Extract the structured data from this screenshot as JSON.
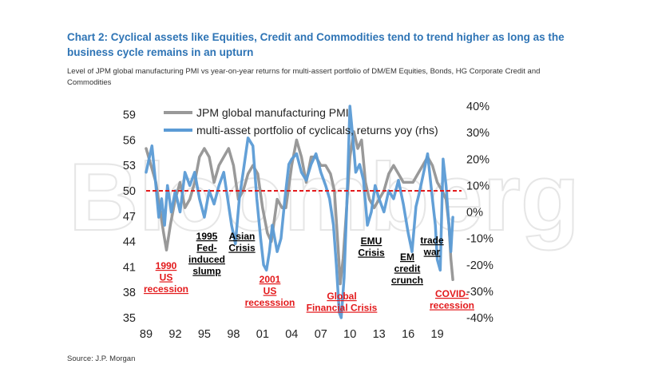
{
  "header": {
    "title": "Chart 2: Cyclical assets like Equities, Credit and Commodities tend to trend higher as long as the business cycle remains in an upturn",
    "subtitle": "Level of JPM global manufacturing PMI vs year-on-year returns for multi-assert portfolio of DM/EM Equities, Bonds, HG Corporate Credit and Commodities"
  },
  "footer": {
    "source": "Source: J.P. Morgan"
  },
  "watermark": "Bloomberg",
  "colors": {
    "pmi": "#999999",
    "portfolio": "#5b9bd5",
    "threshold": "#e31a1c",
    "black_label": "#000000",
    "red_label": "#e31a1c"
  },
  "chart_data": {
    "type": "line",
    "title": "",
    "x_ticks": [
      "89",
      "92",
      "95",
      "98",
      "01",
      "04",
      "07",
      "10",
      "13",
      "16",
      "19"
    ],
    "y_left": {
      "ticks": [
        35,
        38,
        41,
        44,
        47,
        50,
        53,
        56,
        59
      ],
      "labels": [
        "35",
        "38",
        "41",
        "44",
        "47",
        "50",
        "53",
        "56",
        "59"
      ],
      "range": [
        35,
        60
      ]
    },
    "y_right": {
      "ticks": [
        -40,
        -30,
        -20,
        -10,
        0,
        10,
        20,
        30,
        40
      ],
      "labels": [
        "-40%",
        "-30%",
        "-20%",
        "-10%",
        "0%",
        "10%",
        "20%",
        "30%",
        "40%"
      ],
      "range": [
        -40,
        40
      ]
    },
    "x_range": [
      1989,
      2021.5
    ],
    "threshold": {
      "axis": "left",
      "value": 50
    },
    "series": [
      {
        "name": "JPM global manufacturing PMI",
        "axis": "left",
        "x": [
          1989.0,
          1989.5,
          1990.0,
          1990.4,
          1990.8,
          1991.1,
          1991.5,
          1992.0,
          1992.5,
          1993.0,
          1993.5,
          1994.0,
          1994.5,
          1995.0,
          1995.5,
          1996.0,
          1996.5,
          1997.0,
          1997.5,
          1998.0,
          1998.5,
          1999.0,
          1999.5,
          2000.0,
          2000.5,
          2001.0,
          2001.5,
          2001.9,
          2002.5,
          2003.0,
          2003.4,
          2004.0,
          2004.5,
          2005.0,
          2005.5,
          2006.0,
          2006.5,
          2007.0,
          2007.5,
          2008.0,
          2008.4,
          2008.8,
          2009.0,
          2009.3,
          2009.6,
          2010.0,
          2010.4,
          2010.8,
          2011.2,
          2011.6,
          2012.0,
          2012.5,
          2013.0,
          2013.5,
          2014.0,
          2014.5,
          2015.0,
          2015.5,
          2016.0,
          2016.5,
          2017.0,
          2017.5,
          2018.0,
          2018.5,
          2019.0,
          2019.5,
          2019.9,
          2020.2,
          2020.4,
          2020.6
        ],
        "values": [
          55,
          53,
          51,
          48,
          45,
          43,
          46,
          49,
          51,
          48,
          49,
          51,
          54,
          55,
          54,
          51,
          53,
          54,
          55,
          53,
          49,
          50,
          52,
          53,
          52,
          48,
          45,
          44,
          49,
          48,
          48,
          53,
          56,
          54,
          51,
          54,
          54,
          53,
          53,
          52,
          50,
          43,
          39,
          42,
          47,
          54,
          57,
          55,
          56,
          51,
          49,
          48,
          49,
          50,
          52,
          53,
          52,
          51,
          51,
          51,
          52,
          53,
          54,
          53,
          51,
          50,
          49,
          46,
          42,
          39.5
        ]
      },
      {
        "name": "multi-asset portfolio of cyclicals, returns yoy (rhs)",
        "axis": "right",
        "x": [
          1989.0,
          1989.3,
          1989.6,
          1990.0,
          1990.3,
          1990.6,
          1990.9,
          1991.2,
          1991.6,
          1992.0,
          1992.5,
          1993.0,
          1993.5,
          1994.0,
          1994.5,
          1995.0,
          1995.5,
          1996.0,
          1996.5,
          1997.0,
          1997.4,
          1997.8,
          1998.2,
          1998.6,
          1999.0,
          1999.5,
          2000.0,
          2000.4,
          2000.8,
          2001.1,
          2001.4,
          2001.7,
          2002.0,
          2002.5,
          2002.9,
          2003.3,
          2003.7,
          2004.0,
          2004.5,
          2005.0,
          2005.5,
          2006.0,
          2006.5,
          2007.0,
          2007.5,
          2007.9,
          2008.3,
          2008.6,
          2008.9,
          2009.1,
          2009.4,
          2009.7,
          2010.0,
          2010.3,
          2010.6,
          2011.0,
          2011.4,
          2011.8,
          2012.2,
          2012.6,
          2013.0,
          2013.5,
          2014.0,
          2014.5,
          2015.0,
          2015.5,
          2016.0,
          2016.4,
          2016.8,
          2017.2,
          2017.6,
          2018.0,
          2018.5,
          2018.8,
          2019.0,
          2019.3,
          2019.6,
          2019.9,
          2020.2,
          2020.4,
          2020.6
        ],
        "values": [
          15,
          20,
          25,
          10,
          -2,
          5,
          -5,
          10,
          0,
          8,
          0,
          15,
          10,
          15,
          5,
          -2,
          8,
          3,
          10,
          15,
          5,
          -5,
          -12,
          5,
          15,
          28,
          25,
          5,
          -10,
          -20,
          -22,
          -15,
          -5,
          -15,
          -10,
          5,
          18,
          20,
          22,
          15,
          12,
          18,
          22,
          15,
          10,
          5,
          -5,
          -20,
          -38,
          -40,
          -25,
          5,
          40,
          28,
          15,
          18,
          12,
          -5,
          0,
          10,
          5,
          0,
          8,
          5,
          12,
          3,
          -8,
          -15,
          2,
          8,
          15,
          22,
          5,
          -5,
          -18,
          -22,
          20,
          10,
          -5,
          -15,
          -2
        ]
      }
    ],
    "annotations": [
      {
        "lines": [
          "1990",
          "US",
          "recession"
        ],
        "color": "red"
      },
      {
        "lines": [
          "1995",
          "Fed-",
          "induced",
          "slump"
        ],
        "color": "black"
      },
      {
        "lines": [
          "Asian",
          "Crisis"
        ],
        "color": "black"
      },
      {
        "lines": [
          "2001",
          "US",
          "recesssion"
        ],
        "color": "red"
      },
      {
        "lines": [
          "Global",
          "Financial Crisis"
        ],
        "color": "red"
      },
      {
        "lines": [
          "EMU",
          "Crisis"
        ],
        "color": "black"
      },
      {
        "lines": [
          "EM",
          "credit",
          "crunch"
        ],
        "color": "black"
      },
      {
        "lines": [
          "trade",
          "war"
        ],
        "color": "black"
      },
      {
        "lines": [
          "COVID-",
          "recession"
        ],
        "color": "red"
      }
    ]
  }
}
